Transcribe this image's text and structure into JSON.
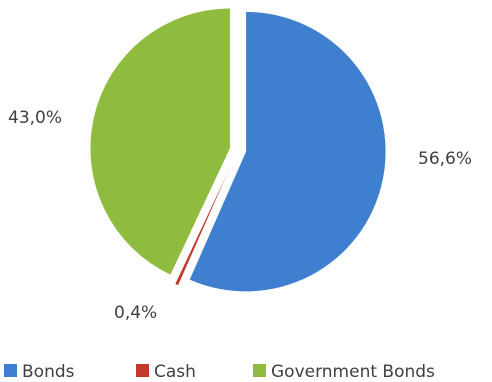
{
  "chart_data": {
    "type": "pie",
    "series": [
      {
        "name": "Bonds",
        "value": 56.6,
        "label": "56,6%",
        "color": "#3f7fcf"
      },
      {
        "name": "Cash",
        "value": 0.4,
        "label": "0,4%",
        "color": "#c0392b"
      },
      {
        "name": "Government Bonds",
        "value": 43.0,
        "label": "43,0%",
        "color": "#8fbc3f"
      }
    ],
    "legend_placement": "bottom",
    "exploded": true
  }
}
